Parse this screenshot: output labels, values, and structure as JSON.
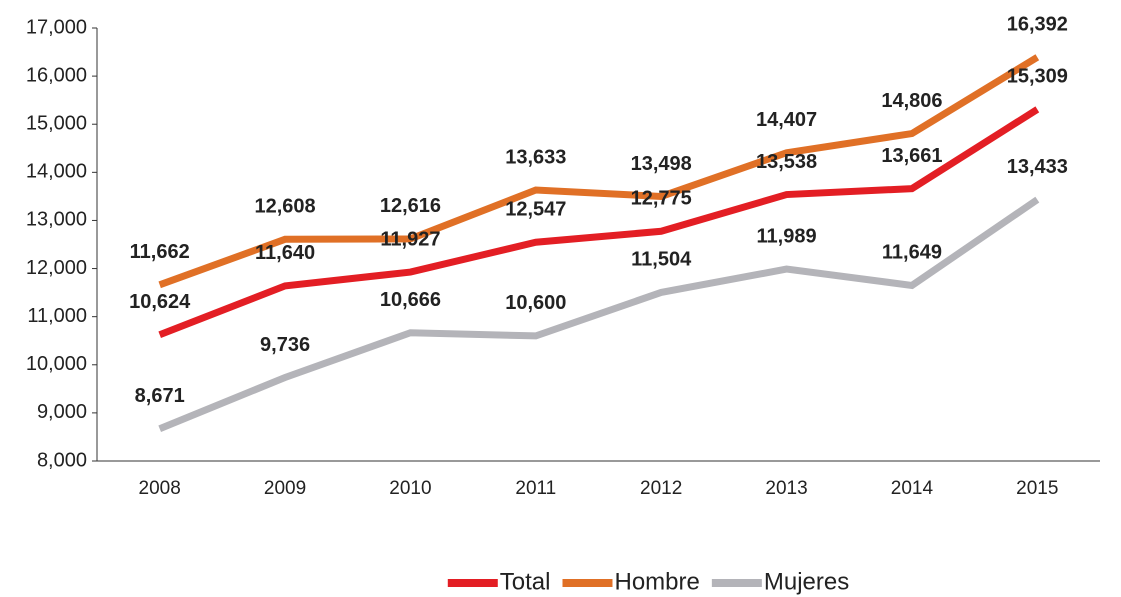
{
  "chart_data": {
    "type": "line",
    "categories": [
      "2008",
      "2009",
      "2010",
      "2011",
      "2012",
      "2013",
      "2014",
      "2015"
    ],
    "series": [
      {
        "name": "Total",
        "color": "#e31e24",
        "values": [
          10624,
          11640,
          11927,
          12547,
          12775,
          13538,
          13661,
          15309
        ],
        "value_labels": [
          "10,624",
          "11,640",
          "11,927",
          "12,547",
          "12,775",
          "13,538",
          "13,661",
          "15,309"
        ]
      },
      {
        "name": "Hombre",
        "color": "#e07026",
        "values": [
          11662,
          12608,
          12616,
          13633,
          13498,
          14407,
          14806,
          16392
        ],
        "value_labels": [
          "11,662",
          "12,608",
          "12,616",
          "13,633",
          "13,498",
          "14,407",
          "14,806",
          "16,392"
        ]
      },
      {
        "name": "Mujeres",
        "color": "#b4b4b9",
        "values": [
          8671,
          9736,
          10666,
          10600,
          11504,
          11989,
          11649,
          13433
        ],
        "value_labels": [
          "8,671",
          "9,736",
          "10,666",
          "10,600",
          "11,504",
          "11,989",
          "11,649",
          "13,433"
        ]
      }
    ],
    "ylim": [
      8000,
      17000
    ],
    "yticks": [
      {
        "value": 8000,
        "label": "8,000"
      },
      {
        "value": 9000,
        "label": "9,000"
      },
      {
        "value": 10000,
        "label": "10,000"
      },
      {
        "value": 11000,
        "label": "11,000"
      },
      {
        "value": 12000,
        "label": "12,000"
      },
      {
        "value": 13000,
        "label": "13,000"
      },
      {
        "value": 14000,
        "label": "14,000"
      },
      {
        "value": 15000,
        "label": "15,000"
      },
      {
        "value": 16000,
        "label": "16,000"
      },
      {
        "value": 17000,
        "label": "17,000"
      }
    ],
    "legend": "bottom"
  }
}
